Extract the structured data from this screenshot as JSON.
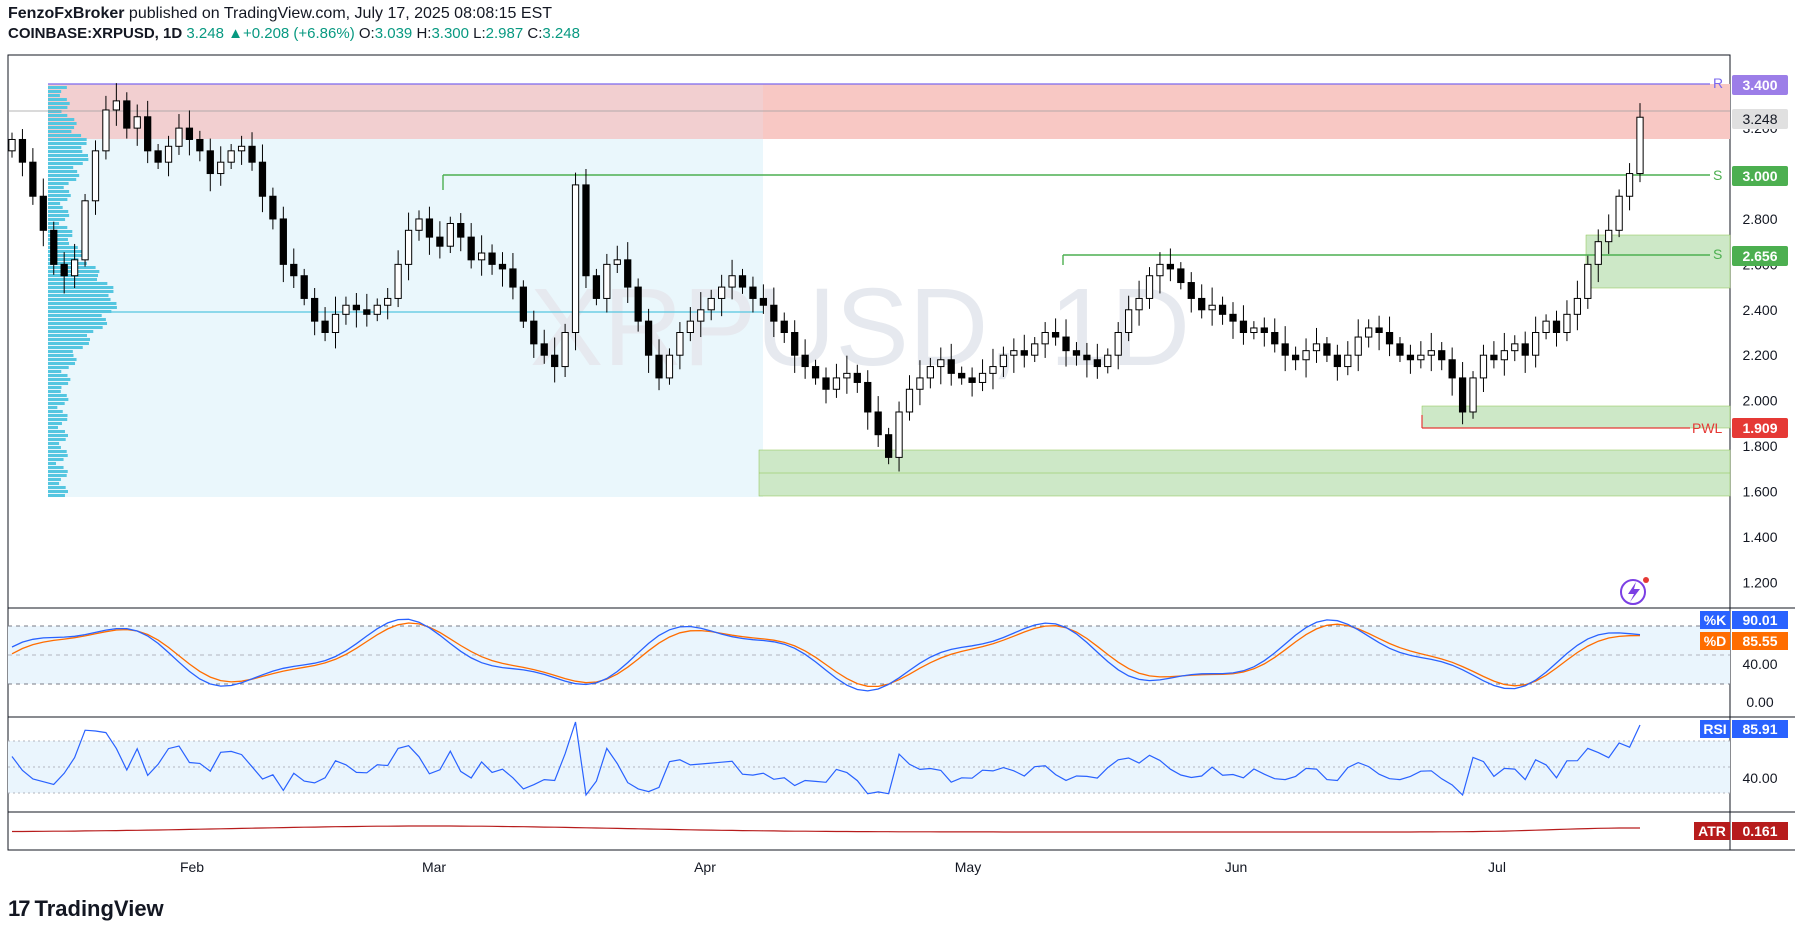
{
  "header": {
    "publisher": "FenzoFxBroker",
    "published_text": "published on TradingView.com, July 17, 2025 08:08:15 EST",
    "symbol": "COINBASE:XRPUSD, 1D",
    "price": "3.248",
    "change": "+0.208 (+6.86%)",
    "o_label": "O:",
    "o_value": "3.039",
    "h_label": "H:",
    "h_value": "3.300",
    "l_label": "L:",
    "l_value": "2.987",
    "c_label": "C:",
    "c_value": "3.248"
  },
  "footer": {
    "brand": "TradingView",
    "logo": "17"
  },
  "watermark": "XRPUSD, 1D",
  "colors": {
    "up": "#ffffff",
    "down": "#000000",
    "resistance_zone": "#f8c8c4",
    "support_zone": "#cde8c7",
    "profile": "#55c6e0",
    "green_line": "#4caf50",
    "purple_line": "#7b68ee",
    "red_line": "#e53935",
    "stoch_k": "#2962ff",
    "stoch_d": "#ff6d00",
    "rsi": "#2962ff",
    "atr": "#b71c1c"
  },
  "chart_data": {
    "type": "candlestick",
    "price_axis": {
      "ylim": [
        1.1,
        3.5
      ],
      "ticks": [
        "3.200",
        "2.800",
        "2.600",
        "2.400",
        "2.200",
        "2.000",
        "1.800",
        "1.600",
        "1.400",
        "1.200"
      ]
    },
    "time_axis": {
      "labels": [
        "Feb",
        "Mar",
        "Apr",
        "May",
        "Jun",
        "Jul"
      ]
    },
    "close_series": [
      3.15,
      3.05,
      2.9,
      2.75,
      2.6,
      2.55,
      2.62,
      2.88,
      3.1,
      3.28,
      3.32,
      3.2,
      3.25,
      3.1,
      3.05,
      3.12,
      3.2,
      3.15,
      3.1,
      3.0,
      3.05,
      3.1,
      3.12,
      3.05,
      2.9,
      2.8,
      2.6,
      2.55,
      2.45,
      2.35,
      2.3,
      2.38,
      2.42,
      2.4,
      2.38,
      2.42,
      2.45,
      2.6,
      2.75,
      2.8,
      2.72,
      2.68,
      2.78,
      2.72,
      2.62,
      2.65,
      2.6,
      2.58,
      2.5,
      2.35,
      2.25,
      2.2,
      2.15,
      2.3,
      2.95,
      2.55,
      2.45,
      2.6,
      2.62,
      2.5,
      2.35,
      2.2,
      2.1,
      2.2,
      2.3,
      2.35,
      2.4,
      2.45,
      2.5,
      2.55,
      2.5,
      2.45,
      2.42,
      2.35,
      2.3,
      2.2,
      2.15,
      2.1,
      2.05,
      2.1,
      2.12,
      2.08,
      1.95,
      1.85,
      1.75,
      1.95,
      2.05,
      2.1,
      2.15,
      2.18,
      2.12,
      2.1,
      2.08,
      2.12,
      2.15,
      2.2,
      2.22,
      2.2,
      2.25,
      2.3,
      2.28,
      2.22,
      2.2,
      2.18,
      2.15,
      2.2,
      2.3,
      2.4,
      2.45,
      2.55,
      2.6,
      2.58,
      2.52,
      2.45,
      2.4,
      2.42,
      2.38,
      2.35,
      2.3,
      2.32,
      2.3,
      2.25,
      2.2,
      2.18,
      2.22,
      2.25,
      2.2,
      2.15,
      2.2,
      2.28,
      2.32,
      2.3,
      2.25,
      2.2,
      2.18,
      2.2,
      2.22,
      2.18,
      2.1,
      1.95,
      2.1,
      2.2,
      2.18,
      2.22,
      2.25,
      2.2,
      2.3,
      2.35,
      2.3,
      2.38,
      2.45,
      2.6,
      2.7,
      2.75,
      2.9,
      3.0,
      3.248
    ],
    "levels": [
      {
        "label": "R",
        "value": 3.4,
        "badge": "3.400"
      },
      {
        "label": "",
        "value": 3.248,
        "badge": "3.248"
      },
      {
        "label": "S",
        "value": 3.0,
        "badge": "3.000"
      },
      {
        "label": "S",
        "value": 2.656,
        "badge": "2.656"
      },
      {
        "label": "PWL",
        "value": 1.909,
        "badge": "1.909"
      }
    ],
    "stochastic": {
      "k_label": "%K",
      "k_value": "90.01",
      "d_label": "%D",
      "d_value": "85.55",
      "ticks": [
        "40.00",
        "0.00"
      ]
    },
    "rsi": {
      "label": "RSI",
      "value": "85.91",
      "ticks": [
        "40.00"
      ]
    },
    "atr": {
      "label": "ATR",
      "value": "0.161"
    }
  }
}
